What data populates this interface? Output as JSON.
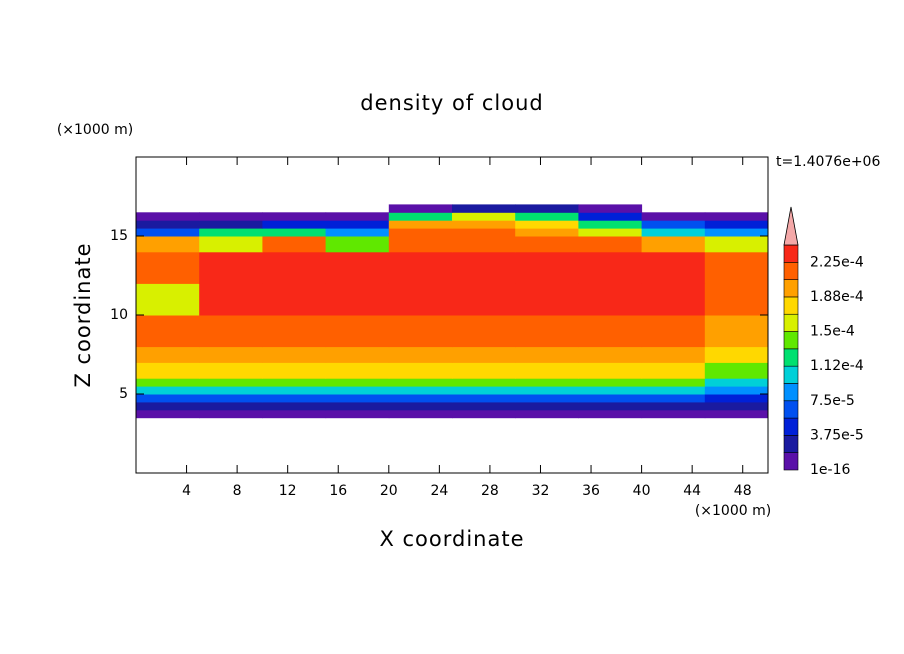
{
  "chart_data": {
    "type": "contour",
    "title": "density of cloud",
    "x_label": "X coordinate",
    "y_label": "Z coordinate",
    "x_unit": "(×1000 m)",
    "y_unit": "(×1000 m)",
    "time_label": "t=1.4076e+06",
    "xlim": [
      0,
      50
    ],
    "ylim": [
      0,
      20
    ],
    "xticks": [
      4,
      8,
      12,
      16,
      20,
      24,
      28,
      32,
      36,
      40,
      44,
      48
    ],
    "yticks": [
      5,
      10,
      15
    ],
    "levels": [
      1e-16,
      1.875e-05,
      3.75e-05,
      5.625e-05,
      7.5e-05,
      9.375e-05,
      0.0001125,
      0.00013125,
      0.00015,
      0.00016875,
      0.0001875,
      0.00020625,
      0.000225,
      0.00024375
    ],
    "colors": [
      "#5a10a8",
      "#1a1aa0",
      "#0020d8",
      "#0050f0",
      "#0090ff",
      "#00d0d8",
      "#00e070",
      "#60e800",
      "#d8f000",
      "#ffd800",
      "#ffa000",
      "#ff6000",
      "#f82818"
    ],
    "over_color": "#f4a8a8",
    "colorbar_ticks": [
      1e-16,
      {
        "value": 3.75e-05,
        "label": "3.75e-5"
      },
      {
        "value": 7.5e-05,
        "label": "7.5e-5"
      },
      {
        "value": 0.0001125,
        "label": "1.12e-4"
      },
      {
        "value": 0.00015,
        "label": "1.5e-4"
      },
      {
        "value": 0.0001875,
        "label": "1.88e-4"
      },
      {
        "value": 0.000225,
        "label": "2.25e-4"
      }
    ],
    "field": {
      "x": [
        0,
        5,
        10,
        15,
        20,
        25,
        30,
        35,
        40,
        45,
        50
      ],
      "z": [
        3.5,
        4,
        4.5,
        5,
        5.5,
        6,
        7,
        8,
        10,
        12,
        14,
        15,
        15.5,
        16,
        16.5,
        17
      ],
      "values": [
        [
          1e-05,
          1e-05,
          1e-05,
          1e-05,
          1e-05,
          1e-05,
          1e-05,
          1e-05,
          1e-05,
          1e-05
        ],
        [
          3e-05,
          3e-05,
          3e-05,
          3e-05,
          3e-05,
          3e-05,
          3e-05,
          3e-05,
          3e-05,
          2e-05
        ],
        [
          6e-05,
          6e-05,
          6e-05,
          6e-05,
          6e-05,
          6e-05,
          6e-05,
          6e-05,
          6e-05,
          4e-05
        ],
        [
          0.0001,
          0.0001,
          0.0001,
          0.0001,
          0.0001,
          0.0001,
          0.0001,
          0.0001,
          0.0001,
          8e-05
        ],
        [
          0.000135,
          0.000135,
          0.000135,
          0.000135,
          0.000135,
          0.000135,
          0.000135,
          0.000135,
          0.000135,
          0.00011
        ],
        [
          0.00017,
          0.00017,
          0.00017,
          0.00017,
          0.00017,
          0.00017,
          0.00017,
          0.00017,
          0.00017,
          0.00014
        ],
        [
          0.000195,
          0.000195,
          0.000195,
          0.000195,
          0.000195,
          0.000195,
          0.000195,
          0.000195,
          0.000195,
          0.00017
        ],
        [
          0.00021,
          0.00022,
          0.00022,
          0.00022,
          0.00022,
          0.00022,
          0.00022,
          0.00022,
          0.00022,
          0.0002
        ],
        [
          0.00016,
          0.00023,
          0.00023,
          0.00023,
          0.00023,
          0.00023,
          0.00023,
          0.00023,
          0.00023,
          0.00022
        ],
        [
          0.00021,
          0.00023,
          0.00023,
          0.00023,
          0.00023,
          0.00023,
          0.00023,
          0.00023,
          0.00023,
          0.00021
        ],
        [
          0.00019,
          0.00015,
          0.00021,
          0.00014,
          0.00022,
          0.00022,
          0.00022,
          0.00022,
          0.0002,
          0.00016
        ],
        [
          6e-05,
          0.00012,
          0.00013,
          8e-05,
          0.00021,
          0.00021,
          0.000205,
          0.00016,
          0.00011,
          9e-05
        ],
        [
          2e-05,
          3e-05,
          4e-05,
          5e-05,
          0.00019,
          0.00019,
          0.00018,
          0.00012,
          6e-05,
          4e-05
        ],
        [
          1e-05,
          1e-05,
          1e-05,
          1e-05,
          0.00012,
          0.00015,
          0.00013,
          5e-05,
          1e-05,
          1e-05
        ],
        [
          null,
          null,
          null,
          null,
          1e-05,
          3e-05,
          2e-05,
          1e-05,
          null,
          null
        ]
      ]
    }
  }
}
